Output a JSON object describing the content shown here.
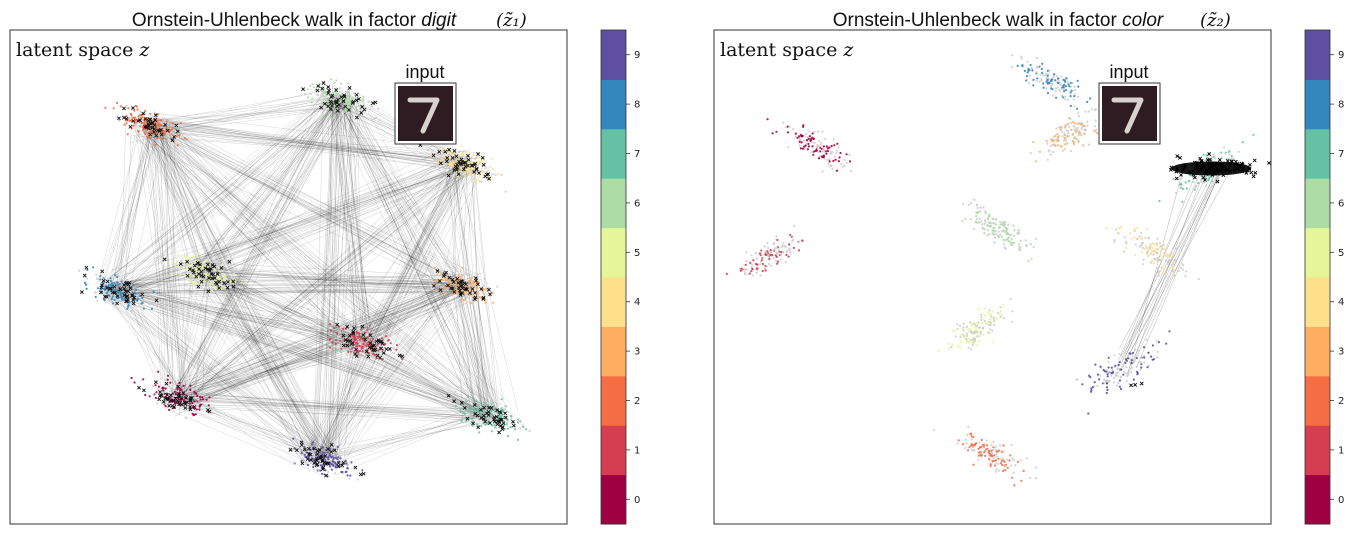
{
  "chart_data": [
    {
      "type": "scatter",
      "title_prefix": "Ornstein-Uhlenbeck walk in factor",
      "title_factor": "digit",
      "title_math": "(z̃₁)",
      "annotation": "latent space",
      "annotation_math": "z",
      "inset_label": "input",
      "inset_digit": "7",
      "clusters": [
        {
          "x": 0.28,
          "y": 0.22
        },
        {
          "x": 0.65,
          "y": 0.35
        },
        {
          "x": 0.22,
          "y": 0.85
        },
        {
          "x": 0.85,
          "y": 0.48
        },
        {
          "x": 0.85,
          "y": 0.76
        },
        {
          "x": 0.33,
          "y": 0.51
        },
        {
          "x": 0.6,
          "y": 0.91
        },
        {
          "x": 0.9,
          "y": 0.18
        },
        {
          "x": 0.15,
          "y": 0.47
        },
        {
          "x": 0.57,
          "y": 0.08
        }
      ]
    },
    {
      "type": "scatter",
      "title_prefix": "Ornstein-Uhlenbeck walk in factor",
      "title_factor": "color",
      "title_math": "(z̃₂)",
      "annotation": "latent space",
      "annotation_math": "z",
      "inset_label": "input",
      "inset_digit": "7",
      "clusters": [
        {
          "x": 0.15,
          "y": 0.8
        },
        {
          "x": 0.05,
          "y": 0.55
        },
        {
          "x": 0.5,
          "y": 0.09
        },
        {
          "x": 0.66,
          "y": 0.83
        },
        {
          "x": 0.82,
          "y": 0.56
        },
        {
          "x": 0.47,
          "y": 0.38
        },
        {
          "x": 0.51,
          "y": 0.61
        },
        {
          "x": 0.94,
          "y": 0.75
        },
        {
          "x": 0.62,
          "y": 0.95
        },
        {
          "x": 0.76,
          "y": 0.29
        }
      ]
    }
  ],
  "colorbar": {
    "ticks": [
      "0",
      "1",
      "2",
      "3",
      "4",
      "5",
      "6",
      "7",
      "8",
      "9"
    ],
    "colors": [
      "#9e0142",
      "#d53e4f",
      "#f46d43",
      "#fdae61",
      "#fee08b",
      "#e6f598",
      "#abdda4",
      "#66c2a5",
      "#3288bd",
      "#5e4fa2"
    ]
  }
}
